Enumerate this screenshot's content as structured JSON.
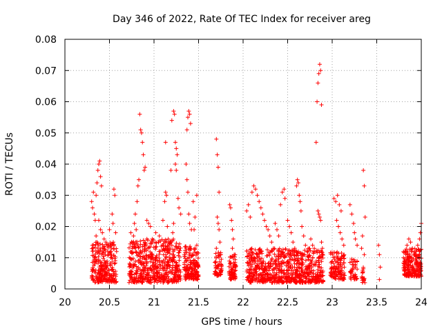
{
  "chart_data": {
    "type": "scatter",
    "title": "Day 346 of 2022, Rate Of TEC Index for receiver areg",
    "xlabel": "GPS time / hours",
    "ylabel": "ROTI / TECUs",
    "xlim": [
      20,
      24
    ],
    "ylim": [
      0,
      0.08
    ],
    "xticks": [
      "20",
      "20.5",
      "21",
      "21.5",
      "22",
      "22.5",
      "23",
      "23.5",
      "24"
    ],
    "yticks": [
      "0",
      "0.01",
      "0.02",
      "0.03",
      "0.04",
      "0.05",
      "0.06",
      "0.07",
      "0.08"
    ],
    "grid": true,
    "marker": "+",
    "color": "#ff0000",
    "points": [
      [
        20.3,
        0.028
      ],
      [
        20.31,
        0.026
      ],
      [
        20.32,
        0.031
      ],
      [
        20.33,
        0.024
      ],
      [
        20.34,
        0.022
      ],
      [
        20.35,
        0.03
      ],
      [
        20.36,
        0.034
      ],
      [
        20.37,
        0.038
      ],
      [
        20.38,
        0.04
      ],
      [
        20.39,
        0.041
      ],
      [
        20.4,
        0.036
      ],
      [
        20.41,
        0.033
      ],
      [
        20.38,
        0.022
      ],
      [
        20.4,
        0.019
      ],
      [
        20.42,
        0.018
      ],
      [
        20.44,
        0.016
      ],
      [
        20.46,
        0.015
      ],
      [
        20.48,
        0.012
      ],
      [
        20.5,
        0.019
      ],
      [
        20.53,
        0.024
      ],
      [
        20.54,
        0.021
      ],
      [
        20.55,
        0.032
      ],
      [
        20.56,
        0.03
      ],
      [
        20.57,
        0.018
      ],
      [
        20.58,
        0.012
      ],
      [
        20.35,
        0.017
      ],
      [
        20.36,
        0.015
      ],
      [
        20.37,
        0.013
      ],
      [
        20.84,
        0.056
      ],
      [
        20.85,
        0.051
      ],
      [
        20.86,
        0.05
      ],
      [
        20.87,
        0.047
      ],
      [
        20.88,
        0.043
      ],
      [
        20.89,
        0.038
      ],
      [
        20.9,
        0.039
      ],
      [
        20.83,
        0.035
      ],
      [
        20.82,
        0.033
      ],
      [
        20.81,
        0.028
      ],
      [
        20.79,
        0.024
      ],
      [
        20.78,
        0.021
      ],
      [
        20.8,
        0.019
      ],
      [
        20.77,
        0.017
      ],
      [
        20.75,
        0.015
      ],
      [
        20.74,
        0.018
      ],
      [
        20.92,
        0.022
      ],
      [
        20.94,
        0.021
      ],
      [
        20.96,
        0.02
      ],
      [
        20.98,
        0.016
      ],
      [
        21.02,
        0.018
      ],
      [
        21.06,
        0.017
      ],
      [
        21.1,
        0.022
      ],
      [
        21.12,
        0.028
      ],
      [
        21.13,
        0.031
      ],
      [
        21.14,
        0.03
      ],
      [
        21.13,
        0.047
      ],
      [
        21.15,
        0.02
      ],
      [
        21.16,
        0.016
      ],
      [
        21.18,
        0.013
      ],
      [
        21.19,
        0.038
      ],
      [
        21.2,
        0.054
      ],
      [
        21.22,
        0.057
      ],
      [
        21.23,
        0.056
      ],
      [
        21.24,
        0.047
      ],
      [
        21.25,
        0.045
      ],
      [
        21.26,
        0.043
      ],
      [
        21.24,
        0.04
      ],
      [
        21.25,
        0.038
      ],
      [
        21.27,
        0.029
      ],
      [
        21.28,
        0.026
      ],
      [
        21.3,
        0.024
      ],
      [
        21.22,
        0.021
      ],
      [
        21.21,
        0.018
      ],
      [
        21.37,
        0.051
      ],
      [
        21.38,
        0.055
      ],
      [
        21.39,
        0.057
      ],
      [
        21.4,
        0.056
      ],
      [
        21.41,
        0.053
      ],
      [
        21.36,
        0.04
      ],
      [
        21.37,
        0.035
      ],
      [
        21.38,
        0.031
      ],
      [
        21.39,
        0.024
      ],
      [
        21.4,
        0.021
      ],
      [
        21.42,
        0.019
      ],
      [
        21.44,
        0.028
      ],
      [
        21.46,
        0.023
      ],
      [
        21.48,
        0.03
      ],
      [
        21.45,
        0.019
      ],
      [
        21.7,
        0.048
      ],
      [
        21.71,
        0.043
      ],
      [
        21.72,
        0.039
      ],
      [
        21.73,
        0.031
      ],
      [
        21.71,
        0.023
      ],
      [
        21.72,
        0.021
      ],
      [
        21.73,
        0.019
      ],
      [
        21.74,
        0.015
      ],
      [
        21.7,
        0.013
      ],
      [
        21.75,
        0.011
      ],
      [
        21.85,
        0.027
      ],
      [
        21.86,
        0.026
      ],
      [
        21.87,
        0.022
      ],
      [
        21.88,
        0.019
      ],
      [
        21.89,
        0.016
      ],
      [
        21.88,
        0.013
      ],
      [
        21.9,
        0.011
      ],
      [
        22.04,
        0.025
      ],
      [
        22.06,
        0.027
      ],
      [
        22.08,
        0.023
      ],
      [
        22.1,
        0.031
      ],
      [
        22.12,
        0.033
      ],
      [
        22.14,
        0.032
      ],
      [
        22.16,
        0.03
      ],
      [
        22.18,
        0.028
      ],
      [
        22.2,
        0.026
      ],
      [
        22.22,
        0.024
      ],
      [
        22.24,
        0.022
      ],
      [
        22.26,
        0.02
      ],
      [
        22.28,
        0.019
      ],
      [
        22.3,
        0.017
      ],
      [
        22.32,
        0.015
      ],
      [
        22.34,
        0.013
      ],
      [
        22.36,
        0.021
      ],
      [
        22.38,
        0.019
      ],
      [
        22.4,
        0.017
      ],
      [
        22.44,
        0.031
      ],
      [
        22.46,
        0.032
      ],
      [
        22.47,
        0.029
      ],
      [
        22.42,
        0.027
      ],
      [
        22.5,
        0.022
      ],
      [
        22.52,
        0.02
      ],
      [
        22.54,
        0.018
      ],
      [
        22.56,
        0.015
      ],
      [
        22.58,
        0.013
      ],
      [
        22.6,
        0.033
      ],
      [
        22.61,
        0.035
      ],
      [
        22.62,
        0.034
      ],
      [
        22.63,
        0.03
      ],
      [
        22.64,
        0.028
      ],
      [
        22.65,
        0.025
      ],
      [
        22.66,
        0.02
      ],
      [
        22.68,
        0.017
      ],
      [
        22.7,
        0.014
      ],
      [
        22.72,
        0.012
      ],
      [
        22.76,
        0.016
      ],
      [
        22.78,
        0.014
      ],
      [
        22.8,
        0.012
      ],
      [
        22.82,
        0.047
      ],
      [
        22.83,
        0.06
      ],
      [
        22.84,
        0.066
      ],
      [
        22.85,
        0.069
      ],
      [
        22.86,
        0.072
      ],
      [
        22.87,
        0.07
      ],
      [
        22.88,
        0.059
      ],
      [
        22.84,
        0.025
      ],
      [
        22.85,
        0.024
      ],
      [
        22.86,
        0.023
      ],
      [
        22.87,
        0.022
      ],
      [
        22.88,
        0.015
      ],
      [
        22.89,
        0.013
      ],
      [
        23.02,
        0.029
      ],
      [
        23.04,
        0.028
      ],
      [
        23.06,
        0.03
      ],
      [
        23.08,
        0.027
      ],
      [
        23.1,
        0.025
      ],
      [
        23.05,
        0.022
      ],
      [
        23.07,
        0.02
      ],
      [
        23.09,
        0.018
      ],
      [
        23.11,
        0.016
      ],
      [
        23.13,
        0.014
      ],
      [
        23.2,
        0.027
      ],
      [
        23.22,
        0.024
      ],
      [
        23.24,
        0.021
      ],
      [
        23.25,
        0.018
      ],
      [
        23.26,
        0.016
      ],
      [
        23.28,
        0.014
      ],
      [
        23.35,
        0.038
      ],
      [
        23.36,
        0.033
      ],
      [
        23.37,
        0.023
      ],
      [
        23.34,
        0.017
      ],
      [
        23.33,
        0.013
      ],
      [
        23.36,
        0.011
      ],
      [
        23.52,
        0.014
      ],
      [
        23.53,
        0.011
      ],
      [
        23.54,
        0.007
      ],
      [
        23.53,
        0.003
      ],
      [
        23.8,
        0.01
      ],
      [
        23.82,
        0.012
      ],
      [
        23.84,
        0.014
      ],
      [
        23.86,
        0.016
      ],
      [
        23.88,
        0.015
      ],
      [
        23.9,
        0.013
      ],
      [
        23.92,
        0.011
      ],
      [
        23.94,
        0.012
      ],
      [
        23.96,
        0.014
      ],
      [
        23.98,
        0.016
      ],
      [
        24.0,
        0.021
      ],
      [
        23.99,
        0.018
      ],
      [
        23.97,
        0.01
      ],
      [
        23.95,
        0.009
      ]
    ],
    "dense_clusters": [
      {
        "x_from": 20.3,
        "x_to": 20.58,
        "y_from": 0.002,
        "y_to": 0.015,
        "count": 260
      },
      {
        "x_from": 20.72,
        "x_to": 21.3,
        "y_from": 0.002,
        "y_to": 0.016,
        "count": 520
      },
      {
        "x_from": 21.34,
        "x_to": 21.5,
        "y_from": 0.003,
        "y_to": 0.014,
        "count": 170
      },
      {
        "x_from": 21.68,
        "x_to": 21.76,
        "y_from": 0.004,
        "y_to": 0.012,
        "count": 60
      },
      {
        "x_from": 21.84,
        "x_to": 21.92,
        "y_from": 0.003,
        "y_to": 0.011,
        "count": 70
      },
      {
        "x_from": 22.04,
        "x_to": 22.9,
        "y_from": 0.002,
        "y_to": 0.013,
        "count": 700
      },
      {
        "x_from": 22.98,
        "x_to": 23.14,
        "y_from": 0.003,
        "y_to": 0.012,
        "count": 120
      },
      {
        "x_from": 23.2,
        "x_to": 23.28,
        "y_from": 0.003,
        "y_to": 0.01,
        "count": 40
      },
      {
        "x_from": 23.33,
        "x_to": 23.37,
        "y_from": 0.002,
        "y_to": 0.007,
        "count": 20
      },
      {
        "x_from": 23.8,
        "x_to": 24.0,
        "y_from": 0.004,
        "y_to": 0.013,
        "count": 210
      }
    ]
  }
}
